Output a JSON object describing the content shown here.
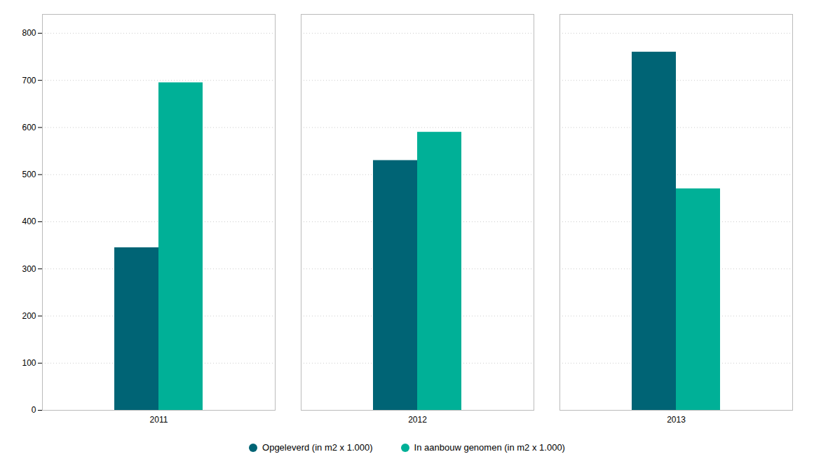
{
  "chart_data": {
    "type": "bar",
    "categories": [
      "2011",
      "2012",
      "2013"
    ],
    "series": [
      {
        "name": "Opgeleverd (in m2 x 1.000)",
        "color": "#006475",
        "values": [
          345,
          530,
          760
        ]
      },
      {
        "name": "In aanbouw genomen (in m2 x 1.000)",
        "color": "#00b097",
        "values": [
          695,
          590,
          470
        ]
      }
    ],
    "ylim": [
      0,
      840
    ],
    "yticks": [
      0,
      100,
      200,
      300,
      400,
      500,
      600,
      700,
      800
    ],
    "grid": true,
    "legend": "bottom"
  }
}
